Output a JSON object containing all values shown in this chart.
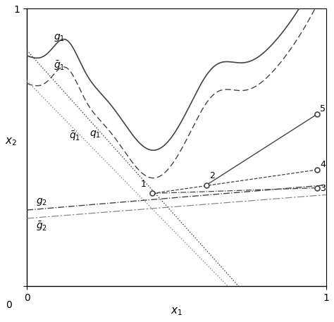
{
  "xlim": [
    0,
    1
  ],
  "ylim": [
    0,
    1
  ],
  "xlabel": "x_1",
  "ylabel": "x_2",
  "xticks": [
    0,
    1
  ],
  "yticks": [
    0,
    1
  ],
  "bg_color": "#ffffff",
  "axes_color": "#000000",
  "g1_label": "$g_1$",
  "g1bar_label": "$\\bar{g}_1$",
  "q1_label": "$q_1$",
  "q1bar_label": "$\\bar{q}_1$",
  "g2_label": "$g_2$",
  "g2bar_label": "$\\bar{g}_2$",
  "point1": [
    0.42,
    0.335
  ],
  "point2": [
    0.6,
    0.365
  ],
  "point3": [
    0.97,
    0.355
  ],
  "point4": [
    0.97,
    0.42
  ],
  "point5": [
    0.97,
    0.62
  ]
}
